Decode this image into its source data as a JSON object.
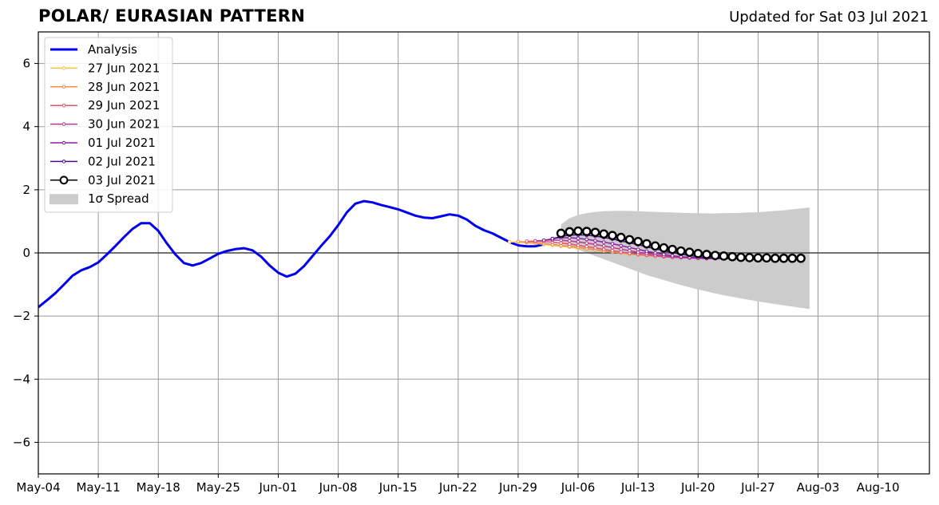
{
  "chart_data": {
    "type": "line",
    "title": "POLAR/ EURASIAN  PATTERN",
    "subtitle": "Updated for Sat 03 Jul 2021",
    "xlabel": "",
    "ylabel": "",
    "xlim": [
      "2021-05-04",
      "2021-08-16"
    ],
    "ylim": [
      -7,
      7
    ],
    "x_ticks": [
      "May-04",
      "May-11",
      "May-18",
      "May-25",
      "Jun-01",
      "Jun-08",
      "Jun-15",
      "Jun-22",
      "Jun-29",
      "Jul-06",
      "Jul-13",
      "Jul-20",
      "Jul-27",
      "Aug-03",
      "Aug-10"
    ],
    "y_ticks": [
      -6,
      -4,
      -2,
      0,
      2,
      4,
      6
    ],
    "grid": true,
    "legend_position": "top-left",
    "legend": [
      "Analysis",
      "27 Jun 2021",
      "28 Jun 2021",
      "29 Jun 2021",
      "30 Jun 2021",
      "01 Jul 2021",
      "02 Jul 2021",
      "03 Jul 2021",
      "1σ Spread"
    ],
    "analysis": {
      "name": "Analysis",
      "color": "#0000ee",
      "start": "2021-05-04",
      "values": [
        -1.72,
        -1.5,
        -1.27,
        -1.0,
        -0.72,
        -0.55,
        -0.45,
        -0.3,
        -0.05,
        0.22,
        0.5,
        0.76,
        0.94,
        0.94,
        0.7,
        0.3,
        -0.05,
        -0.32,
        -0.4,
        -0.32,
        -0.18,
        -0.03,
        0.06,
        0.12,
        0.15,
        0.08,
        -0.12,
        -0.4,
        -0.63,
        -0.75,
        -0.66,
        -0.42,
        -0.1,
        0.22,
        0.52,
        0.88,
        1.28,
        1.56,
        1.64,
        1.6,
        1.52,
        1.45,
        1.38,
        1.28,
        1.18,
        1.12,
        1.1,
        1.16,
        1.22,
        1.18,
        1.06,
        0.86,
        0.72,
        0.62,
        0.48,
        0.34,
        0.24,
        0.21,
        0.21,
        0.27
      ]
    },
    "forecasts": [
      {
        "name": "27 Jun 2021",
        "color": "#f9c04a",
        "start": "2021-06-28",
        "values": [
          0.35,
          0.34,
          0.32,
          0.3,
          0.27,
          0.24,
          0.21,
          0.18,
          0.15,
          0.12,
          0.09,
          0.06,
          0.03,
          0.0,
          -0.02,
          -0.04,
          -0.06,
          -0.08,
          -0.1,
          -0.12,
          -0.13,
          -0.14,
          -0.15,
          -0.16,
          -0.17,
          -0.18,
          -0.19,
          -0.2,
          -0.2
        ]
      },
      {
        "name": "28 Jun 2021",
        "color": "#f58b4a",
        "start": "2021-06-29",
        "values": [
          0.36,
          0.34,
          0.32,
          0.3,
          0.27,
          0.24,
          0.21,
          0.18,
          0.14,
          0.1,
          0.06,
          0.03,
          0.0,
          -0.03,
          -0.06,
          -0.08,
          -0.1,
          -0.12,
          -0.14,
          -0.15,
          -0.16,
          -0.17,
          -0.17,
          -0.18,
          -0.18,
          -0.18,
          -0.18,
          -0.18,
          -0.18
        ]
      },
      {
        "name": "29 Jun 2021",
        "color": "#e0546b",
        "start": "2021-06-30",
        "values": [
          0.37,
          0.37,
          0.36,
          0.34,
          0.31,
          0.28,
          0.24,
          0.2,
          0.16,
          0.11,
          0.07,
          0.03,
          -0.01,
          -0.04,
          -0.07,
          -0.1,
          -0.12,
          -0.14,
          -0.15,
          -0.16,
          -0.17,
          -0.18,
          -0.18,
          -0.18,
          -0.18,
          -0.18,
          -0.18,
          -0.18,
          -0.18
        ]
      },
      {
        "name": "30 Jun 2021",
        "color": "#b9378f",
        "start": "2021-07-01",
        "values": [
          0.38,
          0.4,
          0.41,
          0.4,
          0.38,
          0.35,
          0.31,
          0.27,
          0.22,
          0.17,
          0.12,
          0.07,
          0.02,
          -0.02,
          -0.06,
          -0.1,
          -0.13,
          -0.15,
          -0.16,
          -0.17,
          -0.18,
          -0.18,
          -0.18,
          -0.18,
          -0.18,
          -0.18,
          -0.18,
          -0.18,
          -0.18
        ]
      },
      {
        "name": "01 Jul 2021",
        "color": "#8a1ea5",
        "start": "2021-07-02",
        "values": [
          0.4,
          0.45,
          0.48,
          0.48,
          0.46,
          0.43,
          0.39,
          0.34,
          0.29,
          0.23,
          0.17,
          0.11,
          0.05,
          0.0,
          -0.05,
          -0.09,
          -0.12,
          -0.14,
          -0.16,
          -0.17,
          -0.18,
          -0.18,
          -0.18,
          -0.18,
          -0.18,
          -0.18,
          -0.18,
          -0.18,
          -0.18
        ]
      },
      {
        "name": "02 Jul 2021",
        "color": "#4b0b8e",
        "start": "2021-07-03",
        "values": [
          0.45,
          0.52,
          0.56,
          0.57,
          0.56,
          0.53,
          0.49,
          0.44,
          0.38,
          0.32,
          0.26,
          0.19,
          0.13,
          0.07,
          0.01,
          -0.04,
          -0.08,
          -0.12,
          -0.14,
          -0.16,
          -0.17,
          -0.18,
          -0.18,
          -0.18,
          -0.18,
          -0.18,
          -0.18,
          -0.18,
          -0.18
        ]
      },
      {
        "name": "03 Jul 2021",
        "color": "#000000",
        "start": "2021-07-04",
        "values": [
          0.62,
          0.67,
          0.69,
          0.68,
          0.65,
          0.6,
          0.55,
          0.49,
          0.42,
          0.36,
          0.29,
          0.22,
          0.16,
          0.11,
          0.06,
          0.02,
          -0.02,
          -0.05,
          -0.08,
          -0.1,
          -0.12,
          -0.14,
          -0.15,
          -0.16,
          -0.16,
          -0.17,
          -0.17,
          -0.17,
          -0.17
        ]
      }
    ],
    "spread": {
      "name": "1σ Spread",
      "color": "#cccccc",
      "start": "2021-07-04",
      "upper": [
        0.9,
        1.1,
        1.2,
        1.26,
        1.3,
        1.32,
        1.33,
        1.33,
        1.33,
        1.32,
        1.31,
        1.3,
        1.29,
        1.28,
        1.27,
        1.26,
        1.26,
        1.25,
        1.25,
        1.26,
        1.26,
        1.27,
        1.28,
        1.29,
        1.31,
        1.33,
        1.35,
        1.38,
        1.41,
        1.44
      ],
      "lower": [
        0.3,
        0.2,
        0.1,
        0.0,
        -0.1,
        -0.2,
        -0.3,
        -0.4,
        -0.5,
        -0.6,
        -0.7,
        -0.78,
        -0.86,
        -0.94,
        -1.02,
        -1.09,
        -1.16,
        -1.22,
        -1.28,
        -1.34,
        -1.39,
        -1.44,
        -1.49,
        -1.54,
        -1.58,
        -1.62,
        -1.66,
        -1.7,
        -1.74,
        -1.78
      ]
    }
  }
}
